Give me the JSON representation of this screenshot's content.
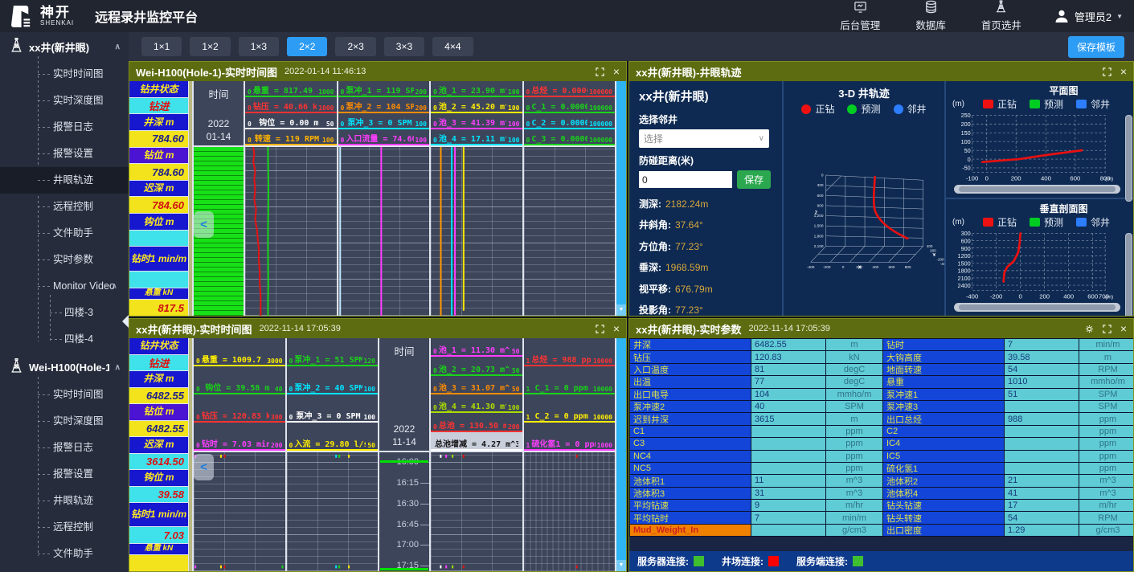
{
  "header": {
    "logo_cn": "神开",
    "logo_en": "SHENKAI",
    "app_title": "远程录井监控平台",
    "nav": [
      {
        "label": "后台管理",
        "icon": "admin-console-icon"
      },
      {
        "label": "数据库",
        "icon": "database-icon"
      },
      {
        "label": "首页选井",
        "icon": "well-select-icon"
      }
    ],
    "user": {
      "name": "管理员2"
    }
  },
  "toolbar": {
    "layouts": [
      "1×1",
      "1×2",
      "1×3",
      "2×2",
      "2×3",
      "3×3",
      "4×4"
    ],
    "active_layout": "2×2",
    "save_template_label": "保存模板"
  },
  "sidebar": {
    "wells": [
      {
        "name": "xx井(新井眼)",
        "active_item": "井眼轨迹",
        "items": [
          "实时时间图",
          "实时深度图",
          "报警日志",
          "报警设置",
          "井眼轨迹",
          "远程控制",
          "文件助手",
          "实时参数",
          "Monitor Video"
        ],
        "monitor_children": [
          "四楼-3",
          "四楼-4"
        ]
      },
      {
        "name": "Wei-H100(Hole-1)",
        "active_item": "",
        "items": [
          "实时时间图",
          "实时深度图",
          "报警日志",
          "报警设置",
          "井眼轨迹",
          "远程控制",
          "文件助手"
        ]
      }
    ]
  },
  "panel_time_chart_1": {
    "title": "Wei-H100(Hole-1)",
    "subtitle": "实时时间图",
    "datetime": "2022-01-14 11:46:13",
    "params": [
      {
        "label": "钻井状态",
        "value": "钻进",
        "style": "cyan-red"
      },
      {
        "label": "井深 m",
        "value": "784.60",
        "style": "yellow-navy"
      },
      {
        "label": "钻位 m",
        "value": "784.60",
        "style": "yellow-navy"
      },
      {
        "label": "迟深 m",
        "value": "784.60",
        "style": "yellow-red"
      },
      {
        "label": "钩位 m",
        "value": "",
        "style": "cyan-red"
      },
      {
        "label": "钻时1 min/m",
        "value": "",
        "style": "cyan-red"
      },
      {
        "label": "悬重 kN",
        "value": "817.5",
        "style": "yellow-red"
      }
    ],
    "time_col": {
      "label": "时间",
      "year": "2022",
      "date": "01-14"
    },
    "tracks": [
      {
        "curves": [
          {
            "name": "悬重 = 817.49 kN",
            "min": "0",
            "max": "1000",
            "color": "#19d419"
          },
          {
            "name": "钻压 = 40.66 kN",
            "min": "0",
            "max": "1000",
            "color": "#ff3333"
          },
          {
            "name": "钩位 = 0.00 m",
            "min": "0",
            "max": "50",
            "color": "#ffffff"
          },
          {
            "name": "转速 = 119 RPM",
            "min": "0",
            "max": "100",
            "color": "#ffb300"
          }
        ]
      },
      {
        "curves": [
          {
            "name": "泵冲_1 = 119 SPM",
            "min": "0",
            "max": "200",
            "color": "#19d419"
          },
          {
            "name": "泵冲_2 = 104 SPM",
            "min": "0",
            "max": "200",
            "color": "#ff8c00"
          },
          {
            "name": "泵冲_3 = 0 SPM",
            "min": "0",
            "max": "100",
            "color": "#00e5ff"
          },
          {
            "name": "入口流量 = 74.60",
            "min": "0",
            "max": "100",
            "color": "#ff3dff"
          }
        ]
      },
      {
        "curves": [
          {
            "name": "池_1 = 23.90 m^3",
            "min": "0",
            "max": "100",
            "color": "#19d419"
          },
          {
            "name": "池_2 = 45.20 m^3",
            "min": "0",
            "max": "100",
            "color": "#ffee00"
          },
          {
            "name": "池_3 = 41.39 m^3",
            "min": "0",
            "max": "100",
            "color": "#ff3dff"
          },
          {
            "name": "池_4 = 17.11 m^3",
            "min": "0",
            "max": "100",
            "color": "#00e5ff"
          }
        ]
      },
      {
        "curves": [
          {
            "name": "总烃 = 0.0000",
            "min": "0",
            "max": "100000",
            "color": "#ff3333"
          },
          {
            "name": "C_1 = 0.0000",
            "min": "0",
            "max": "100000",
            "color": "#19d419"
          },
          {
            "name": "C_2 = 0.0000",
            "min": "0",
            "max": "100000",
            "color": "#00e5ff"
          },
          {
            "name": "C_3 = 0.0000",
            "min": "0",
            "max": "100000",
            "color": "#19d419"
          }
        ]
      }
    ]
  },
  "panel_trajectory": {
    "title": "xx井(新井眼)",
    "subtitle": "井眼轨迹",
    "well_name": "xx井(新井眼)",
    "neighbor_label": "选择邻井",
    "neighbor_value": "选择",
    "distance_label": "防碰距离(米)",
    "distance_value": "0",
    "save_label": "保存",
    "info": [
      {
        "label": "测深:",
        "value": "2182.24m"
      },
      {
        "label": "井斜角:",
        "value": "37.64°"
      },
      {
        "label": "方位角:",
        "value": "77.23°"
      },
      {
        "label": "垂深:",
        "value": "1968.59m"
      },
      {
        "label": "视平移:",
        "value": "676.79m"
      },
      {
        "label": "投影角:",
        "value": "77.23°"
      },
      {
        "label": "靶点垂深:",
        "value": "--m"
      }
    ],
    "legend": [
      {
        "label": "正钻",
        "color": "#ee1111"
      },
      {
        "label": "预测",
        "color": "#00cc22"
      },
      {
        "label": "邻井",
        "color": "#2d7dff"
      }
    ],
    "chart3d": {
      "title": "3-D 井轨迹",
      "x_label": "X",
      "y_label": "Y",
      "z_label": "Z",
      "z_ticks": [
        "0",
        "300",
        "600",
        "900",
        "1,200",
        "1,500",
        "1,800",
        "2,100"
      ],
      "x_ticks": [
        "-400",
        "-200",
        "0",
        "200",
        "400",
        "600",
        "800"
      ],
      "y_ticks": [
        "400",
        "200",
        "0",
        "-200",
        "-400"
      ],
      "trace_approx": [
        [
          0,
          0
        ],
        [
          50,
          900
        ],
        [
          600,
          2100
        ]
      ]
    },
    "plan_view": {
      "title": "平面图",
      "axis_unit": "(m)",
      "x_unit": "(m)",
      "y_ticks": [
        "250",
        "200",
        "150",
        "100",
        "50",
        "0",
        "-50"
      ],
      "x_ticks": [
        "-100",
        "0",
        "200",
        "400",
        "600",
        "800"
      ],
      "line_approx": [
        [
          0,
          0
        ],
        [
          670,
          110
        ]
      ]
    },
    "section_view": {
      "title": "垂直剖面图",
      "axis_unit": "(m)",
      "x_unit": "(m)",
      "y_ticks": [
        "300",
        "600",
        "900",
        "1200",
        "1500",
        "1800",
        "2100",
        "2400"
      ],
      "x_ticks": [
        "-400",
        "-200",
        "0",
        "200",
        "400",
        "600",
        "700"
      ],
      "line_approx": [
        [
          0,
          150
        ],
        [
          -30,
          1200
        ],
        [
          -130,
          2100
        ]
      ]
    }
  },
  "panel_time_chart_2": {
    "title": "xx井(新井眼)",
    "subtitle": "实时时间图",
    "datetime": "2022-11-14 17:05:39",
    "params": [
      {
        "label": "钻井状态",
        "value": "钻进",
        "style": "cyan-red"
      },
      {
        "label": "井深 m",
        "value": "6482.55",
        "style": "yellow-navy"
      },
      {
        "label": "钻位 m",
        "value": "6482.55",
        "style": "yellow-navy"
      },
      {
        "label": "迟深 m",
        "value": "3614.50",
        "style": "cyan-red"
      },
      {
        "label": "钩位 m",
        "value": "39.58",
        "style": "cyan-red"
      },
      {
        "label": "钻时1 min/m",
        "value": "7.03",
        "style": "cyan-red"
      },
      {
        "label": "悬重 kN",
        "value": "",
        "style": "yellow-navy"
      }
    ],
    "time_col": {
      "label": "时间",
      "year": "2022",
      "date": "11-14"
    },
    "time_ticks": [
      "16:00",
      "16:15",
      "16:30",
      "16:45",
      "17:00",
      "17:15"
    ],
    "tracks": [
      {
        "curves": [
          {
            "name": "悬重 = 1009.7 kN",
            "min": "0",
            "max": "3000",
            "color": "#ffee00"
          },
          {
            "name": "钩位 = 39.58 m",
            "min": "0",
            "max": "40",
            "color": "#19d419"
          },
          {
            "name": "钻压 = 120.83 kN",
            "min": "0",
            "max": "300",
            "color": "#ff3333"
          },
          {
            "name": "钻时 = 7.03 min/m",
            "min": "0",
            "max": "200",
            "color": "#ff3dff"
          }
        ]
      },
      {
        "curves": [
          {
            "name": "泵冲_1 = 51 SPM",
            "min": "0",
            "max": "120",
            "color": "#19d419"
          },
          {
            "name": "泵冲_2 = 40 SPM",
            "min": "0",
            "max": "100",
            "color": "#00e5ff"
          },
          {
            "name": "泵冲_3 = 0 SPM",
            "min": "0",
            "max": "100",
            "color": "#ffffff"
          },
          {
            "name": "入流 = 29.80 l/s",
            "min": "0",
            "max": "50",
            "color": "#ffee00"
          }
        ]
      },
      {
        "curves": [
          {
            "name": "池_1 = 11.30 m^3",
            "min": "0",
            "max": "50",
            "color": "#ff3dff"
          },
          {
            "name": "池_2 = 20.73 m^3",
            "min": "0",
            "max": "50",
            "color": "#19d419"
          },
          {
            "name": "池_3 = 31.07 m^3",
            "min": "0",
            "max": "50",
            "color": "#ff8c00"
          },
          {
            "name": "池_4 = 41.30 m^3",
            "min": "0",
            "max": "100",
            "color": "#aadd00"
          },
          {
            "name": "总池 = 130.50 m^3",
            "min": "0",
            "max": "200",
            "color": "#ff3333"
          },
          {
            "name": "总池增减 = 4.27 m^3",
            "min": "",
            "max": "",
            "color": "#111111",
            "style": "special"
          }
        ]
      },
      {
        "curves": [
          {
            "name": "总烃 = 988 ppm",
            "min": "1",
            "max": "10000",
            "color": "#ff3333"
          },
          {
            "name": "C_1 = 0 ppm",
            "min": "1",
            "max": "10000",
            "color": "#19d419"
          },
          {
            "name": "C_2 = 0 ppm",
            "min": "1",
            "max": "10000",
            "color": "#ffee00"
          },
          {
            "name": "硫化氢1 = 0 ppm",
            "min": "1",
            "max": "1000",
            "color": "#ff3dff"
          }
        ]
      }
    ]
  },
  "panel_params": {
    "title": "xx井(新井眼)",
    "subtitle": "实时参数",
    "datetime": "2022-11-14 17:05:39",
    "highlight_label": "Mud_Weight_In",
    "rows": [
      [
        "井深",
        "6482.55",
        "m",
        "钻时",
        "7",
        "min/m"
      ],
      [
        "钻压",
        "120.83",
        "kN",
        "大钩高度",
        "39.58",
        "m"
      ],
      [
        "入口温度",
        "81",
        "degC",
        "地面转速",
        "54",
        "RPM"
      ],
      [
        "出温",
        "77",
        "degC",
        "悬重",
        "1010",
        "mmho/m"
      ],
      [
        "出口电导",
        "104",
        "mmho/m",
        "泵冲速1",
        "51",
        "SPM"
      ],
      [
        "泵冲速2",
        "40",
        "SPM",
        "泵冲速3",
        "",
        "SPM"
      ],
      [
        "迟到井深",
        "3615",
        "m",
        "出口总烃",
        "988",
        "ppm"
      ],
      [
        "C1",
        "",
        "ppm",
        "C2",
        "",
        "ppm"
      ],
      [
        "C3",
        "",
        "ppm",
        "IC4",
        "",
        "ppm"
      ],
      [
        "NC4",
        "",
        "ppm",
        "IC5",
        "",
        "ppm"
      ],
      [
        "NC5",
        "",
        "ppm",
        "硫化氢1",
        "",
        "ppm"
      ],
      [
        "池体积1",
        "11",
        "m^3",
        "池体积2",
        "21",
        "m^3"
      ],
      [
        "池体积3",
        "31",
        "m^3",
        "池体积4",
        "41",
        "m^3"
      ],
      [
        "平均钻速",
        "9",
        "m/hr",
        "钻头钻速",
        "17",
        "m/hr"
      ],
      [
        "平均钻时",
        "7",
        "min/m",
        "钻头转速",
        "54",
        "RPM"
      ],
      [
        "Mud_Weight_In",
        "",
        "g/cm3",
        "出口密度",
        "1.29",
        "g/cm3"
      ]
    ],
    "footer": [
      {
        "label": "服务器连接:",
        "color": "#3fbf2f"
      },
      {
        "label": "井场连接:",
        "color": "#ff0000"
      },
      {
        "label": "服务端连接:",
        "color": "#3fbf2f"
      }
    ]
  }
}
